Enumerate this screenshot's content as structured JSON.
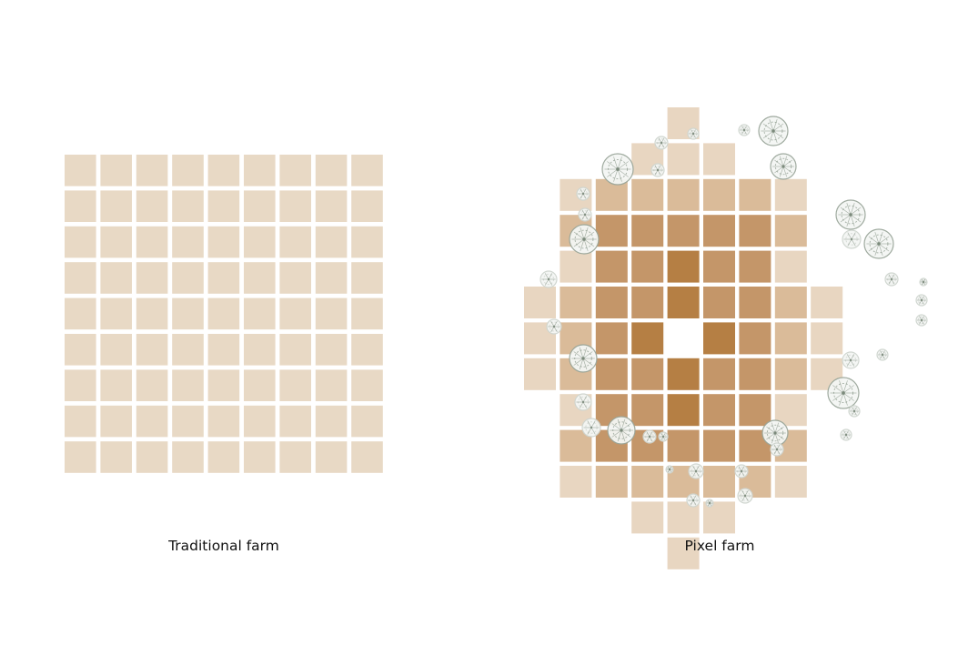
{
  "captions": {
    "traditional": "Traditional farm",
    "pixel": "Pixel farm"
  },
  "traditional_farm": {
    "rows": 9,
    "cols": 9,
    "color": "#e8d9c5"
  },
  "pixel_farm": {
    "palette": {
      "0": "#e8d6c1",
      "1": "#dabb99",
      "2": "#c49669",
      "3": "#b57f44"
    },
    "grid": [
      "....0....",
      "...000...",
      ".0111110.",
      ".1222221.",
      ".0223220.",
      "012232210",
      "0123.3210",
      "012232210",
      ".0223220.",
      ".1222221.",
      ".0111110.",
      "...000...",
      "....0...."
    ],
    "tree_colors": [
      "#cfd5cf",
      "#9aa69a",
      "#6f7f6f"
    ]
  }
}
